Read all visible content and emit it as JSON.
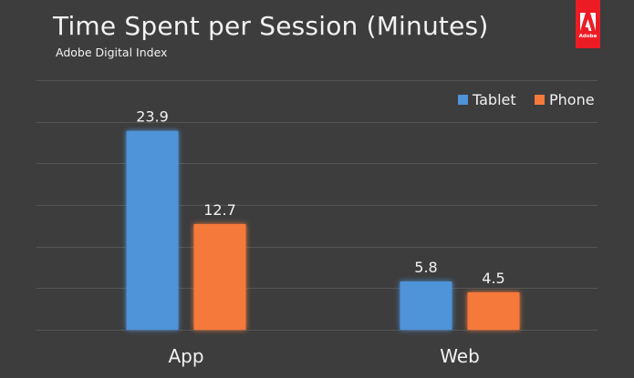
{
  "chart_data": {
    "type": "bar",
    "title": "Time Spent per Session (Minutes)",
    "subtitle": "Adobe Digital Index",
    "categories": [
      "App",
      "Web"
    ],
    "series": [
      {
        "name": "Tablet",
        "values": [
          23.9,
          5.8
        ],
        "color": "#4f93d8"
      },
      {
        "name": "Phone",
        "values": [
          12.7,
          4.5
        ],
        "color": "#f5793b"
      }
    ],
    "ylim": [
      0,
      30
    ],
    "grid": true,
    "legend_position": "top-right",
    "data_labels": true
  },
  "brand": {
    "logo_text": "Adobe",
    "logo_icon": "adobe-logo-icon",
    "logo_color": "#ed1c24"
  },
  "colors": {
    "background": "#3d3d3d",
    "gridline": "#555555",
    "text": "#f2f2f2"
  }
}
